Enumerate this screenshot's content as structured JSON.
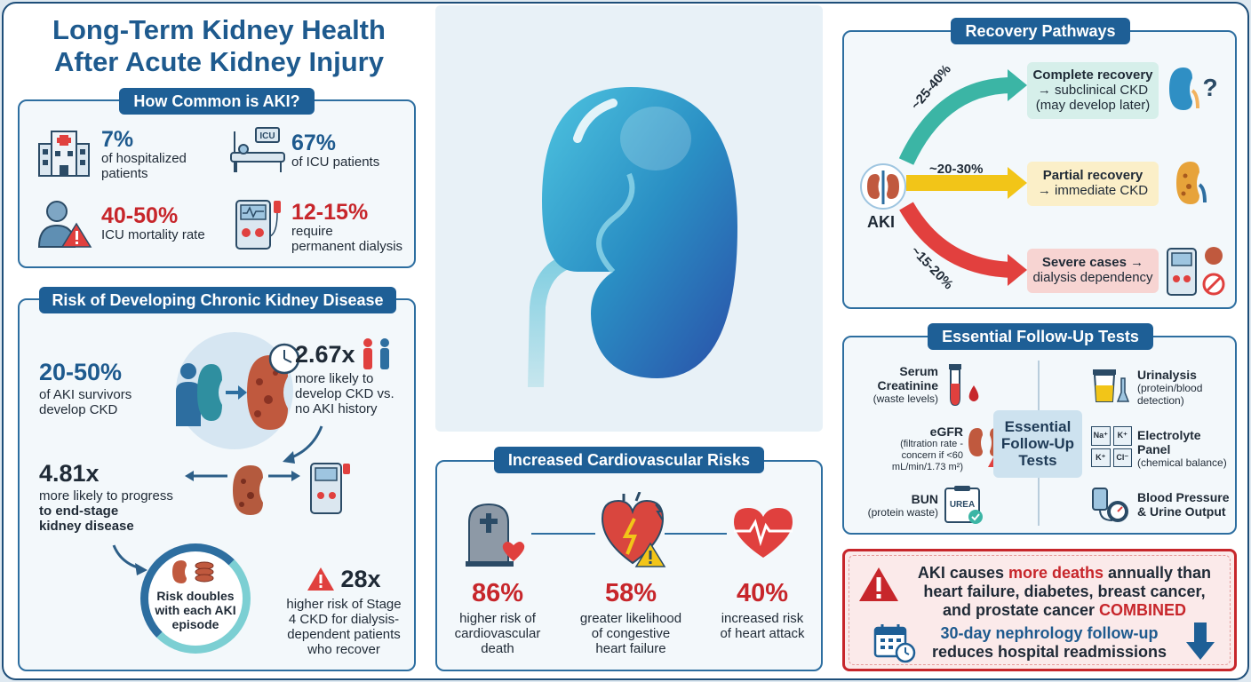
{
  "header": {
    "line1": "Long-Term Kidney Health",
    "line2": "After Acute Kidney Injury"
  },
  "prevalence": {
    "title": "How Common is AKI?",
    "stats": [
      {
        "value": "7%",
        "label1": "of hospitalized",
        "label2": "patients"
      },
      {
        "value": "67%",
        "label1": "of ICU patients",
        "label2": ""
      },
      {
        "value": "40-50%",
        "label1": "ICU mortality rate",
        "label2": ""
      },
      {
        "value": "12-15%",
        "label1": "require",
        "label2": "permanent dialysis"
      }
    ],
    "icu_sign": "ICU"
  },
  "ckd_risk": {
    "title": "Risk of Developing Chronic Kidney Disease",
    "survivors_value": "20-50%",
    "survivors_l1": "of AKI survivors",
    "survivors_l2": "develop CKD",
    "likely_value": "2.67x",
    "likely_l1": "more likely to",
    "likely_l2": "develop CKD vs.",
    "likely_l3": "no AKI history",
    "esrd_value": "4.81x",
    "esrd_l1": "more likely to progress",
    "esrd_l2": "to end-stage",
    "esrd_l3": "kidney disease",
    "doubles_l1": "Risk doubles",
    "doubles_l2": "with each AKI",
    "doubles_l3": "episode",
    "stage4_value": "28x",
    "stage4_l1": "higher risk of Stage",
    "stage4_l2": "4 CKD for dialysis-",
    "stage4_l3": "dependent patients",
    "stage4_l4": "who recover"
  },
  "cardio": {
    "title": "Increased Cardiovascular Risks",
    "items": [
      {
        "value": "86%",
        "l1": "higher risk of",
        "l2": "cardiovascular",
        "l3": "death"
      },
      {
        "value": "58%",
        "l1": "greater likelihood",
        "l2": "of congestive",
        "l3": "heart failure"
      },
      {
        "value": "40%",
        "l1": "increased risk",
        "l2": "of heart attack",
        "l3": ""
      }
    ]
  },
  "recovery": {
    "title": "Recovery Pathways",
    "aki_label": "AKI",
    "paths": [
      {
        "percent": "~25-40%",
        "l1": "Complete recovery",
        "l2": "→ subclinical CKD",
        "l3": "(may develop later)",
        "color": "#3bb5a5"
      },
      {
        "percent": "~20-30%",
        "l1": "Partial recovery",
        "l2": "→ immediate CKD",
        "l3": "",
        "color": "#f2c518"
      },
      {
        "percent": "~15-20%",
        "l1": "Severe cases →",
        "l2": "dialysis dependency",
        "l3": "",
        "color": "#e2403e"
      }
    ],
    "question_mark": "?"
  },
  "tests": {
    "title": "Essential Follow-Up Tests",
    "center_l1": "Essential",
    "center_l2": "Follow-Up",
    "center_l3": "Tests",
    "left": [
      {
        "name1": "Serum",
        "name2": "Creatinine",
        "d1": "(waste levels)",
        "d2": "",
        "d3": ""
      },
      {
        "name1": "eGFR",
        "name2": "",
        "d1": "(filtration rate -",
        "d2": "concern if <60",
        "d3": "mL/min/1.73 m²)"
      },
      {
        "name1": "BUN",
        "name2": "",
        "d1": "(protein waste)",
        "d2": "",
        "d3": ""
      }
    ],
    "right": [
      {
        "name1": "Urinalysis",
        "name2": "",
        "d1": "(protein/blood",
        "d2": "detection)"
      },
      {
        "name1": "Electrolyte",
        "name2": "Panel",
        "d1": "(chemical balance)",
        "d2": ""
      },
      {
        "name1": "Blood Pressure",
        "name2": "& Urine Output",
        "d1": "",
        "d2": ""
      }
    ],
    "urea": "UREA",
    "electrolytes": [
      "Na⁺",
      "K⁺",
      "K⁺",
      "Cl⁻"
    ]
  },
  "alert": {
    "l1a": "AKI causes ",
    "l1b": "more deaths",
    "l1c": " annually than",
    "l2": "heart failure, diabetes, breast cancer,",
    "l3a": "and prostate cancer ",
    "l3b": "COMBINED",
    "follow1": "30-day nephrology follow-up",
    "follow2": "reduces hospital readmissions"
  },
  "colors": {
    "navy": "#1e5f96",
    "title_blue": "#1e5a8e",
    "red": "#c7262b",
    "teal": "#3bb5a5",
    "yellow": "#f2c518",
    "coral": "#e2403e"
  }
}
